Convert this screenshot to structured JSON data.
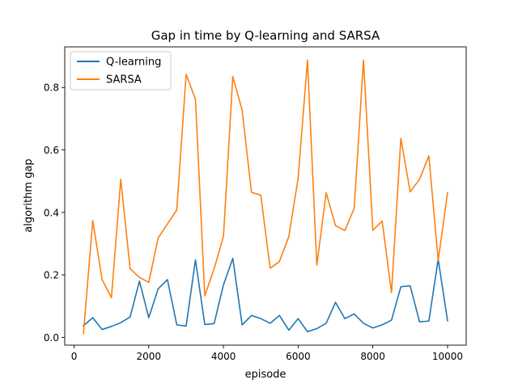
{
  "chart_data": {
    "type": "line",
    "title": "Gap in time by Q-learning and SARSA",
    "xlabel": "episode",
    "ylabel": "algorithm gap",
    "xlim": [
      -250,
      10500
    ],
    "ylim": [
      -0.025,
      0.93
    ],
    "xticks": [
      0,
      2000,
      4000,
      6000,
      8000,
      10000
    ],
    "xtick_labels": [
      "0",
      "2000",
      "4000",
      "6000",
      "8000",
      "10000"
    ],
    "yticks": [
      0.0,
      0.2,
      0.4,
      0.6,
      0.8
    ],
    "ytick_labels": [
      "0.0",
      "0.2",
      "0.4",
      "0.6",
      "0.8"
    ],
    "legend_position": "top-left",
    "x": [
      250,
      500,
      750,
      1000,
      1250,
      1500,
      1750,
      2000,
      2250,
      2500,
      2750,
      3000,
      3250,
      3500,
      3750,
      4000,
      4250,
      4500,
      4750,
      5000,
      5250,
      5500,
      5750,
      6000,
      6250,
      6500,
      6750,
      7000,
      7250,
      7500,
      7750,
      8000,
      8250,
      8500,
      8750,
      9000,
      9250,
      9500,
      9750,
      10000
    ],
    "series": [
      {
        "name": "Q-learning",
        "color": "#1f77b4",
        "values": [
          0.037,
          0.063,
          0.025,
          0.035,
          0.047,
          0.065,
          0.18,
          0.063,
          0.155,
          0.185,
          0.04,
          0.036,
          0.248,
          0.041,
          0.044,
          0.168,
          0.253,
          0.04,
          0.07,
          0.06,
          0.045,
          0.07,
          0.023,
          0.06,
          0.018,
          0.028,
          0.045,
          0.112,
          0.06,
          0.075,
          0.045,
          0.03,
          0.04,
          0.055,
          0.162,
          0.165,
          0.05,
          0.052,
          0.25,
          0.053
        ]
      },
      {
        "name": "SARSA",
        "color": "#ff7f0e",
        "values": [
          0.012,
          0.374,
          0.185,
          0.127,
          0.506,
          0.22,
          0.192,
          0.176,
          0.318,
          0.363,
          0.408,
          0.842,
          0.762,
          0.133,
          0.22,
          0.323,
          0.835,
          0.727,
          0.464,
          0.455,
          0.221,
          0.243,
          0.323,
          0.51,
          0.888,
          0.231,
          0.463,
          0.358,
          0.342,
          0.413,
          0.888,
          0.343,
          0.372,
          0.143,
          0.637,
          0.466,
          0.506,
          0.581,
          0.246,
          0.463
        ]
      }
    ]
  }
}
